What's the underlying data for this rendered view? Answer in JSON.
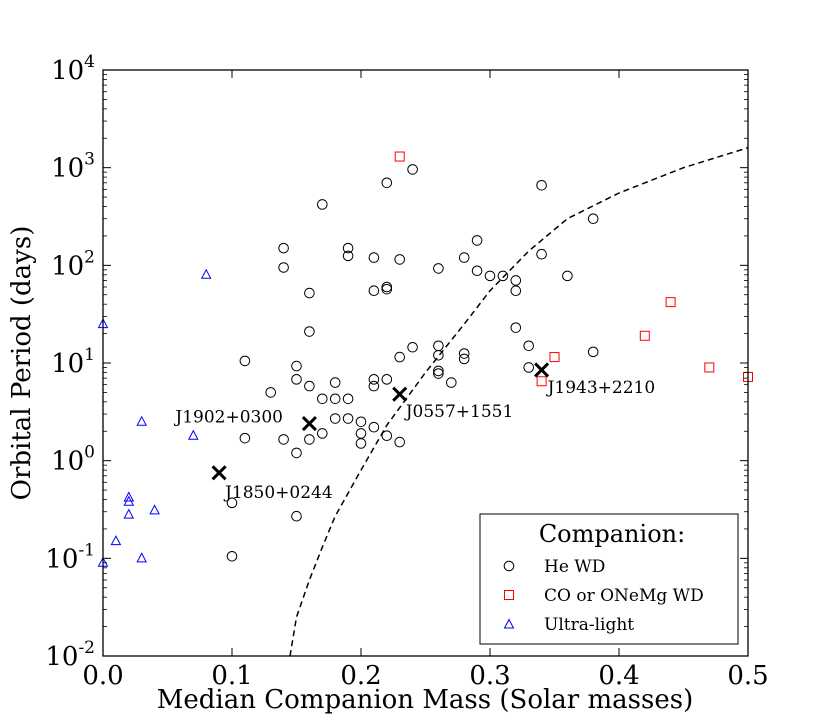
{
  "chart_data": {
    "type": "scatter",
    "xlabel": "Median Companion Mass (Solar masses)",
    "ylabel": "Orbital Period (days)",
    "xlim": [
      0,
      0.5
    ],
    "ylim": [
      0.01,
      10000
    ],
    "yscale": "log",
    "x_ticks": [
      "0.0",
      "0.1",
      "0.2",
      "0.3",
      "0.4",
      "0.5"
    ],
    "y_ticks": [
      {
        "base": "10",
        "exp": "-2"
      },
      {
        "base": "10",
        "exp": "-1"
      },
      {
        "base": "10",
        "exp": "0"
      },
      {
        "base": "10",
        "exp": "1"
      },
      {
        "base": "10",
        "exp": "2"
      },
      {
        "base": "10",
        "exp": "3"
      },
      {
        "base": "10",
        "exp": "4"
      }
    ],
    "legend": {
      "title": "Companion:",
      "location": "lower-right",
      "entries": [
        "He WD",
        "CO or ONeMg WD",
        "Ultra-light"
      ]
    },
    "series": [
      {
        "name": "He WD",
        "marker": "circle",
        "color": "#000000",
        "points": [
          [
            0.14,
            150
          ],
          [
            0.14,
            95
          ],
          [
            0.17,
            420
          ],
          [
            0.16,
            52
          ],
          [
            0.16,
            21
          ],
          [
            0.19,
            150
          ],
          [
            0.19,
            125
          ],
          [
            0.22,
            700
          ],
          [
            0.24,
            960
          ],
          [
            0.21,
            120
          ],
          [
            0.23,
            115
          ],
          [
            0.22,
            60
          ],
          [
            0.21,
            55
          ],
          [
            0.22,
            57
          ],
          [
            0.26,
            93
          ],
          [
            0.29,
            180
          ],
          [
            0.28,
            120
          ],
          [
            0.29,
            88
          ],
          [
            0.3,
            78
          ],
          [
            0.31,
            78
          ],
          [
            0.32,
            70
          ],
          [
            0.32,
            55
          ],
          [
            0.34,
            660
          ],
          [
            0.38,
            300
          ],
          [
            0.34,
            130
          ],
          [
            0.36,
            78
          ],
          [
            0.32,
            23
          ],
          [
            0.33,
            15
          ],
          [
            0.38,
            13
          ],
          [
            0.33,
            9
          ],
          [
            0.11,
            10.5
          ],
          [
            0.15,
            9.3
          ],
          [
            0.15,
            6.8
          ],
          [
            0.13,
            5
          ],
          [
            0.16,
            5.8
          ],
          [
            0.18,
            6.3
          ],
          [
            0.17,
            4.3
          ],
          [
            0.18,
            4.3
          ],
          [
            0.19,
            4.3
          ],
          [
            0.21,
            6.8
          ],
          [
            0.21,
            5.8
          ],
          [
            0.22,
            6.8
          ],
          [
            0.23,
            11.5
          ],
          [
            0.24,
            14.5
          ],
          [
            0.26,
            15
          ],
          [
            0.26,
            12
          ],
          [
            0.26,
            8.3
          ],
          [
            0.26,
            7.8
          ],
          [
            0.27,
            6.3
          ],
          [
            0.28,
            12.5
          ],
          [
            0.28,
            11
          ],
          [
            0.18,
            2.7
          ],
          [
            0.19,
            2.7
          ],
          [
            0.2,
            2.5
          ],
          [
            0.2,
            1.9
          ],
          [
            0.21,
            2.2
          ],
          [
            0.2,
            1.5
          ],
          [
            0.22,
            1.8
          ],
          [
            0.23,
            1.55
          ],
          [
            0.17,
            1.9
          ],
          [
            0.16,
            1.65
          ],
          [
            0.14,
            1.65
          ],
          [
            0.15,
            1.2
          ],
          [
            0.11,
            1.7
          ],
          [
            0.15,
            0.27
          ],
          [
            0.1,
            0.37
          ],
          [
            0.1,
            0.105
          ]
        ]
      },
      {
        "name": "CO or ONeMg WD",
        "marker": "square",
        "color": "#ff0000",
        "points": [
          [
            0.23,
            1300
          ],
          [
            0.44,
            42
          ],
          [
            0.42,
            19
          ],
          [
            0.35,
            11.5
          ],
          [
            0.34,
            6.5
          ],
          [
            0.47,
            9
          ],
          [
            0.5,
            7.2
          ]
        ]
      },
      {
        "name": "Ultra-light",
        "marker": "triangle",
        "color": "#0000ff",
        "points": [
          [
            0.0,
            25
          ],
          [
            0.08,
            80
          ],
          [
            0.03,
            2.5
          ],
          [
            0.07,
            1.8
          ],
          [
            0.02,
            0.42
          ],
          [
            0.02,
            0.38
          ],
          [
            0.02,
            0.28
          ],
          [
            0.04,
            0.31
          ],
          [
            0.01,
            0.15
          ],
          [
            0.03,
            0.1
          ],
          [
            0.0,
            0.09
          ]
        ]
      }
    ],
    "highlighted": [
      {
        "label": "J1850+0244",
        "x": 0.09,
        "y": 0.75
      },
      {
        "label": "J1902+0300",
        "x": 0.16,
        "y": 2.4
      },
      {
        "label": "J0557+1551",
        "x": 0.23,
        "y": 4.8
      },
      {
        "label": "J1943+2210",
        "x": 0.34,
        "y": 8.5
      }
    ],
    "curve": {
      "style": "dashed",
      "points": [
        [
          0.145,
          0.01
        ],
        [
          0.15,
          0.025
        ],
        [
          0.16,
          0.06
        ],
        [
          0.17,
          0.13
        ],
        [
          0.18,
          0.27
        ],
        [
          0.2,
          0.8
        ],
        [
          0.22,
          2.3
        ],
        [
          0.25,
          8
        ],
        [
          0.28,
          25
        ],
        [
          0.3,
          55
        ],
        [
          0.33,
          140
        ],
        [
          0.36,
          300
        ],
        [
          0.4,
          550
        ],
        [
          0.45,
          1000
        ],
        [
          0.5,
          1600
        ]
      ]
    }
  }
}
